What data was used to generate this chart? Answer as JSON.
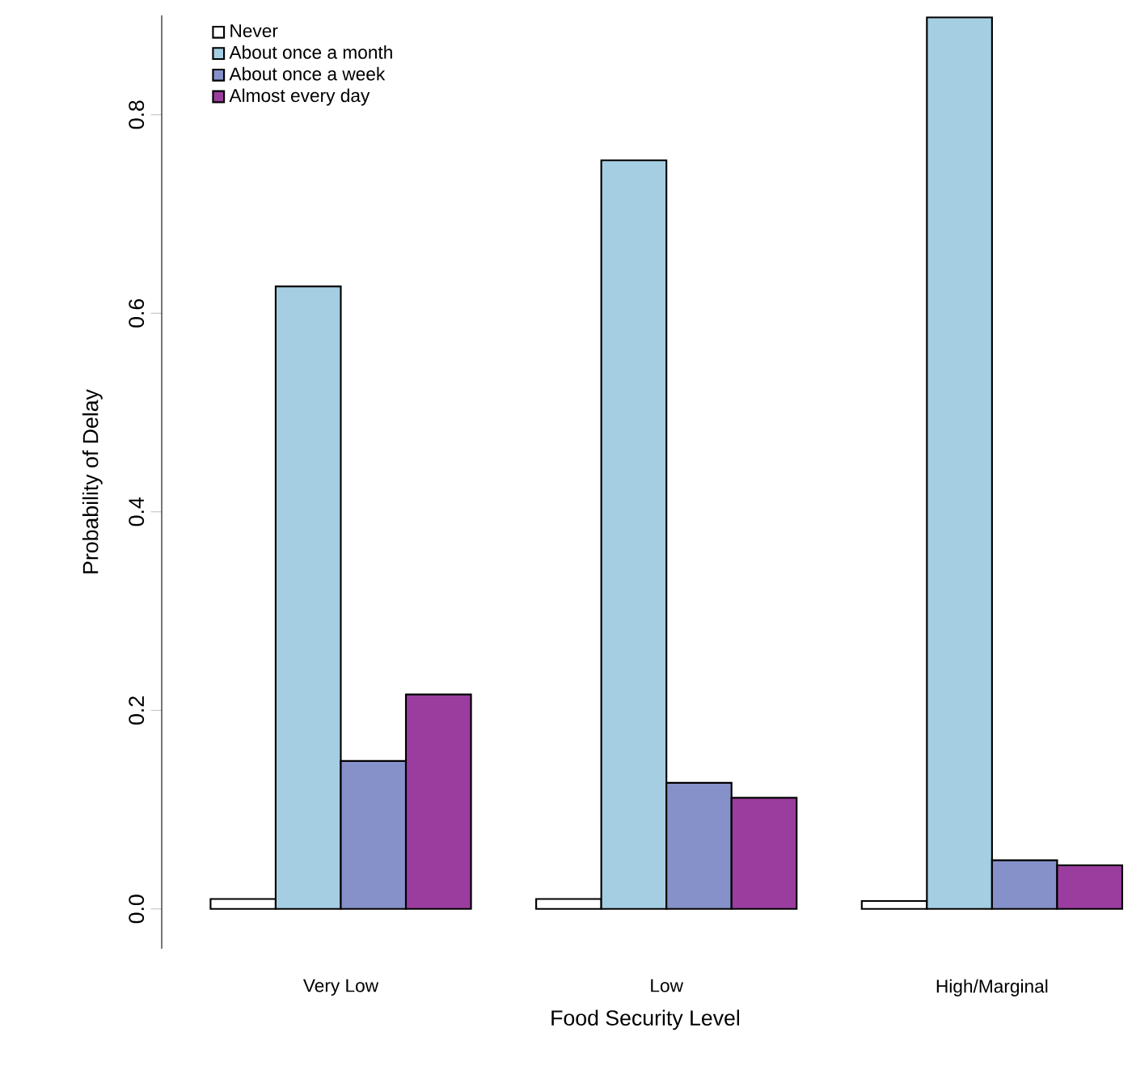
{
  "chart_data": {
    "type": "bar",
    "xlabel": "Food Security Level",
    "ylabel": "Probability of Delay",
    "categories": [
      "Very Low",
      "Low",
      "High/Marginal"
    ],
    "series": [
      {
        "name": "Never",
        "color": "#ffffff",
        "values": [
          0.01,
          0.01,
          0.008
        ]
      },
      {
        "name": "About once a month",
        "color": "#a6cee3",
        "values": [
          0.627,
          0.754,
          0.898
        ]
      },
      {
        "name": "About once a week",
        "color": "#8591c8",
        "values": [
          0.149,
          0.127,
          0.049
        ]
      },
      {
        "name": "Almost every day",
        "color": "#9a3d9e",
        "values": [
          0.216,
          0.112,
          0.044
        ]
      }
    ],
    "ylim": [
      -0.04,
      0.9
    ],
    "yticks": [
      {
        "value": 0,
        "label": "0.0"
      },
      0.2,
      0.4,
      0.6,
      {
        "value": 0.8,
        "label": "0.8"
      }
    ],
    "legend": "top left",
    "grid": false
  }
}
